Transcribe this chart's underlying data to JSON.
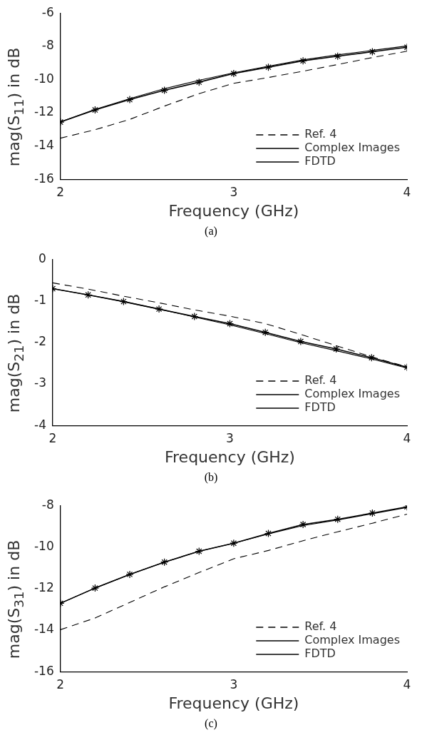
{
  "chart_data": [
    {
      "type": "line",
      "xlabel": "Frequency (GHz)",
      "ylabel": "mag(S$_{11}$) in dB",
      "annotations": [
        "(a)"
      ],
      "x": [
        2,
        2.2,
        2.4,
        2.6,
        2.8,
        3,
        3.2,
        3.4,
        3.6,
        3.8,
        4
      ],
      "xlim": [
        2,
        4
      ],
      "xticks": [
        2,
        3,
        4
      ],
      "ylim": [
        -16,
        -6
      ],
      "yticks": [
        -16,
        -14,
        -12,
        -10,
        -8,
        -6
      ],
      "grid": false,
      "legend": "bottom right",
      "series": [
        {
          "name": "Ref. 4",
          "color": "#000000",
          "line_style": "dashed",
          "marker": "none",
          "values": [
            -13.53,
            -13.02,
            -12.4,
            -11.6,
            -10.85,
            -10.23,
            -9.88,
            -9.5,
            -9.1,
            -8.68,
            -8.3
          ]
        },
        {
          "name": "Complex Images",
          "color": "#000000",
          "line_style": "solid",
          "marker": "cross",
          "values": [
            -12.56,
            -11.83,
            -11.21,
            -10.65,
            -10.16,
            -9.64,
            -9.26,
            -8.88,
            -8.6,
            -8.33,
            -8.06
          ]
        },
        {
          "name": "FDTD",
          "color": "#000000",
          "line_style": "solid",
          "marker": "none",
          "values": [
            -12.55,
            -11.8,
            -11.15,
            -10.55,
            -10.05,
            -9.6,
            -9.2,
            -8.82,
            -8.52,
            -8.25,
            -7.98
          ]
        }
      ]
    },
    {
      "type": "line",
      "xlabel": "Frequency (GHz)",
      "ylabel": "mag(S$_{21}$) in dB",
      "annotations": [
        "(b)"
      ],
      "x": [
        2,
        2.2,
        2.4,
        2.6,
        2.8,
        3,
        3.2,
        3.4,
        3.6,
        3.8,
        4
      ],
      "xlim": [
        2,
        4
      ],
      "xticks": [
        2,
        3,
        4
      ],
      "ylim": [
        -4,
        0
      ],
      "yticks": [
        -4,
        -3,
        -2,
        -1,
        0
      ],
      "grid": false,
      "legend": "bottom right",
      "series": [
        {
          "name": "Ref. 4",
          "color": "#000000",
          "line_style": "dashed",
          "marker": "none",
          "values": [
            -0.57,
            -0.72,
            -0.89,
            -1.05,
            -1.22,
            -1.37,
            -1.55,
            -1.81,
            -2.08,
            -2.35,
            -2.59
          ]
        },
        {
          "name": "Complex Images",
          "color": "#000000",
          "line_style": "solid",
          "marker": "cross",
          "values": [
            -0.71,
            -0.86,
            -1.02,
            -1.2,
            -1.38,
            -1.55,
            -1.76,
            -1.98,
            -2.16,
            -2.37,
            -2.6
          ]
        },
        {
          "name": "FDTD",
          "color": "#000000",
          "line_style": "solid",
          "marker": "none",
          "values": [
            -0.71,
            -0.86,
            -1.02,
            -1.2,
            -1.39,
            -1.58,
            -1.79,
            -2.01,
            -2.2,
            -2.4,
            -2.62
          ]
        }
      ]
    },
    {
      "type": "line",
      "xlabel": "Frequency (GHz)",
      "ylabel": "mag(S$_{31}$) in dB",
      "annotations": [
        "(c)"
      ],
      "x": [
        2,
        2.2,
        2.4,
        2.6,
        2.8,
        3,
        3.2,
        3.4,
        3.6,
        3.8,
        4
      ],
      "xlim": [
        2,
        4
      ],
      "xticks": [
        2,
        3,
        4
      ],
      "ylim": [
        -16,
        -8
      ],
      "yticks": [
        -16,
        -14,
        -12,
        -10,
        -8
      ],
      "grid": false,
      "legend": "bottom right",
      "series": [
        {
          "name": "Ref. 4",
          "color": "#000000",
          "line_style": "dashed",
          "marker": "none",
          "values": [
            -13.98,
            -13.42,
            -12.67,
            -11.92,
            -11.23,
            -10.57,
            -10.17,
            -9.7,
            -9.27,
            -8.86,
            -8.42
          ]
        },
        {
          "name": "Complex Images",
          "color": "#000000",
          "line_style": "solid",
          "marker": "cross",
          "values": [
            -12.71,
            -11.98,
            -11.32,
            -10.73,
            -10.21,
            -9.82,
            -9.35,
            -8.92,
            -8.67,
            -8.37,
            -8.07
          ]
        },
        {
          "name": "FDTD",
          "color": "#000000",
          "line_style": "solid",
          "marker": "none",
          "values": [
            -12.71,
            -11.98,
            -11.32,
            -10.73,
            -10.21,
            -9.82,
            -9.37,
            -8.97,
            -8.7,
            -8.4,
            -8.1
          ]
        }
      ]
    }
  ]
}
